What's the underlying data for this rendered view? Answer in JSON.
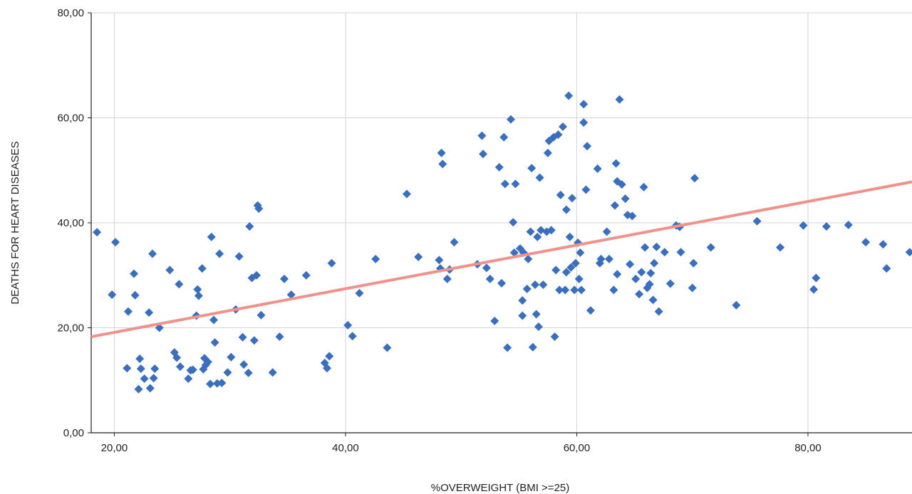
{
  "chart_data": {
    "type": "scatter",
    "title": "",
    "xlabel": "%OVERWEIGHT (BMI >=25)",
    "ylabel": "DEATHS FOR HEART DISEASES",
    "xlim": [
      18,
      89
    ],
    "ylim": [
      0,
      80
    ],
    "x_ticks": [
      20,
      40,
      60,
      80
    ],
    "x_tick_labels": [
      "20,00",
      "40,00",
      "60,00",
      "80,00"
    ],
    "y_ticks": [
      0,
      20,
      40,
      60,
      80
    ],
    "y_tick_labels": [
      "0,00",
      "20,00",
      "40,00",
      "60,00",
      "80,00"
    ],
    "grid": true,
    "colors": {
      "points": "#3a6fbf",
      "trendline": "#f0928c",
      "grid": "#d4d4d4",
      "axis": "#222222"
    },
    "trendline": {
      "x": [
        18,
        89
      ],
      "y": [
        18.3,
        47.8
      ]
    },
    "series": [
      {
        "points": [
          [
            18.5,
            38.2
          ],
          [
            19.8,
            26.3
          ],
          [
            20.1,
            36.3
          ],
          [
            21.1,
            12.3
          ],
          [
            21.2,
            23.1
          ],
          [
            21.7,
            30.3
          ],
          [
            21.8,
            26.2
          ],
          [
            22.1,
            8.3
          ],
          [
            22.2,
            14.1
          ],
          [
            22.3,
            12.2
          ],
          [
            22.6,
            10.3
          ],
          [
            23.0,
            22.9
          ],
          [
            23.1,
            8.5
          ],
          [
            23.3,
            34.1
          ],
          [
            23.4,
            10.4
          ],
          [
            23.5,
            12.2
          ],
          [
            23.9,
            20.0
          ],
          [
            24.8,
            31.0
          ],
          [
            25.2,
            15.3
          ],
          [
            25.4,
            14.3
          ],
          [
            25.6,
            28.3
          ],
          [
            25.7,
            12.6
          ],
          [
            26.4,
            10.3
          ],
          [
            26.6,
            11.9
          ],
          [
            26.8,
            12.0
          ],
          [
            27.1,
            22.3
          ],
          [
            27.2,
            27.3
          ],
          [
            27.3,
            26.1
          ],
          [
            27.6,
            31.3
          ],
          [
            27.7,
            12.1
          ],
          [
            27.8,
            14.2
          ],
          [
            27.9,
            12.9
          ],
          [
            28.1,
            13.5
          ],
          [
            28.3,
            9.3
          ],
          [
            28.4,
            37.3
          ],
          [
            28.6,
            21.5
          ],
          [
            28.7,
            17.2
          ],
          [
            28.9,
            9.4
          ],
          [
            29.1,
            34.1
          ],
          [
            29.3,
            9.5
          ],
          [
            29.8,
            11.5
          ],
          [
            30.1,
            14.4
          ],
          [
            30.5,
            23.5
          ],
          [
            30.8,
            33.6
          ],
          [
            31.1,
            18.2
          ],
          [
            31.2,
            13.0
          ],
          [
            31.6,
            11.4
          ],
          [
            31.7,
            39.3
          ],
          [
            31.9,
            29.5
          ],
          [
            32.1,
            17.6
          ],
          [
            32.3,
            30.0
          ],
          [
            32.4,
            43.3
          ],
          [
            32.5,
            42.7
          ],
          [
            32.7,
            22.4
          ],
          [
            34.3,
            18.3
          ],
          [
            34.7,
            29.3
          ],
          [
            35.3,
            26.3
          ],
          [
            33.7,
            11.5
          ],
          [
            36.6,
            30.0
          ],
          [
            38.2,
            13.3
          ],
          [
            38.4,
            12.3
          ],
          [
            38.6,
            14.6
          ],
          [
            38.8,
            32.3
          ],
          [
            40.2,
            20.5
          ],
          [
            40.6,
            18.4
          ],
          [
            41.2,
            26.6
          ],
          [
            42.6,
            33.1
          ],
          [
            43.6,
            16.2
          ],
          [
            45.3,
            45.5
          ],
          [
            46.3,
            33.5
          ],
          [
            48.1,
            32.9
          ],
          [
            48.2,
            31.3
          ],
          [
            48.3,
            53.3
          ],
          [
            48.4,
            51.2
          ],
          [
            48.8,
            29.3
          ],
          [
            49.0,
            31.1
          ],
          [
            49.4,
            36.3
          ],
          [
            51.4,
            32.1
          ],
          [
            51.8,
            56.6
          ],
          [
            51.9,
            53.1
          ],
          [
            52.2,
            31.4
          ],
          [
            52.5,
            29.3
          ],
          [
            52.9,
            21.3
          ],
          [
            53.3,
            50.6
          ],
          [
            53.5,
            28.5
          ],
          [
            53.7,
            56.3
          ],
          [
            53.8,
            47.4
          ],
          [
            54.0,
            16.2
          ],
          [
            54.3,
            59.7
          ],
          [
            54.5,
            40.1
          ],
          [
            54.6,
            34.3
          ],
          [
            54.7,
            47.4
          ],
          [
            55.1,
            35.1
          ],
          [
            55.3,
            22.3
          ],
          [
            55.3,
            25.2
          ],
          [
            55.4,
            34.3
          ],
          [
            55.7,
            27.4
          ],
          [
            55.8,
            33.1
          ],
          [
            56.0,
            38.3
          ],
          [
            56.1,
            50.4
          ],
          [
            56.2,
            16.3
          ],
          [
            56.4,
            28.2
          ],
          [
            56.5,
            22.6
          ],
          [
            56.6,
            37.3
          ],
          [
            56.7,
            20.2
          ],
          [
            56.8,
            48.6
          ],
          [
            56.9,
            38.6
          ],
          [
            57.1,
            28.2
          ],
          [
            57.4,
            38.3
          ],
          [
            57.5,
            53.3
          ],
          [
            57.6,
            55.6
          ],
          [
            57.8,
            38.6
          ],
          [
            58.0,
            56.3
          ],
          [
            58.1,
            18.3
          ],
          [
            58.2,
            31.0
          ],
          [
            58.4,
            56.8
          ],
          [
            58.5,
            27.2
          ],
          [
            58.6,
            45.3
          ],
          [
            58.8,
            58.3
          ],
          [
            59.0,
            27.2
          ],
          [
            59.1,
            30.6
          ],
          [
            59.1,
            42.5
          ],
          [
            59.3,
            64.2
          ],
          [
            59.4,
            37.3
          ],
          [
            59.5,
            31.5
          ],
          [
            59.6,
            44.7
          ],
          [
            59.8,
            27.2
          ],
          [
            59.9,
            32.3
          ],
          [
            60.1,
            36.2
          ],
          [
            60.2,
            29.3
          ],
          [
            60.3,
            34.3
          ],
          [
            60.4,
            27.2
          ],
          [
            60.6,
            62.6
          ],
          [
            60.6,
            59.1
          ],
          [
            60.8,
            46.3
          ],
          [
            60.9,
            54.6
          ],
          [
            61.2,
            23.3
          ],
          [
            61.8,
            50.3
          ],
          [
            62.0,
            32.3
          ],
          [
            62.1,
            33.1
          ],
          [
            62.6,
            38.3
          ],
          [
            62.8,
            33.1
          ],
          [
            63.2,
            27.2
          ],
          [
            63.3,
            43.3
          ],
          [
            63.4,
            51.3
          ],
          [
            63.5,
            47.9
          ],
          [
            63.5,
            30.2
          ],
          [
            63.7,
            63.5
          ],
          [
            63.9,
            47.3
          ],
          [
            64.2,
            44.6
          ],
          [
            64.4,
            41.5
          ],
          [
            64.6,
            32.1
          ],
          [
            64.8,
            41.3
          ],
          [
            65.1,
            29.3
          ],
          [
            65.4,
            26.4
          ],
          [
            65.6,
            30.6
          ],
          [
            65.8,
            46.8
          ],
          [
            65.9,
            35.3
          ],
          [
            66.1,
            27.6
          ],
          [
            66.3,
            28.3
          ],
          [
            66.4,
            30.4
          ],
          [
            66.6,
            25.3
          ],
          [
            66.7,
            32.3
          ],
          [
            66.9,
            35.4
          ],
          [
            67.1,
            23.1
          ],
          [
            67.6,
            34.4
          ],
          [
            68.1,
            28.4
          ],
          [
            68.6,
            39.5
          ],
          [
            68.9,
            39.2
          ],
          [
            69.0,
            34.4
          ],
          [
            70.2,
            48.5
          ],
          [
            70.1,
            32.3
          ],
          [
            70.0,
            27.6
          ],
          [
            71.6,
            35.3
          ],
          [
            73.8,
            24.3
          ],
          [
            75.6,
            40.3
          ],
          [
            77.6,
            35.3
          ],
          [
            79.6,
            39.5
          ],
          [
            80.5,
            27.3
          ],
          [
            80.7,
            29.5
          ],
          [
            81.6,
            39.3
          ],
          [
            83.5,
            39.6
          ],
          [
            85.0,
            36.3
          ],
          [
            86.5,
            35.9
          ],
          [
            86.8,
            31.3
          ],
          [
            88.8,
            34.4
          ]
        ]
      }
    ]
  }
}
